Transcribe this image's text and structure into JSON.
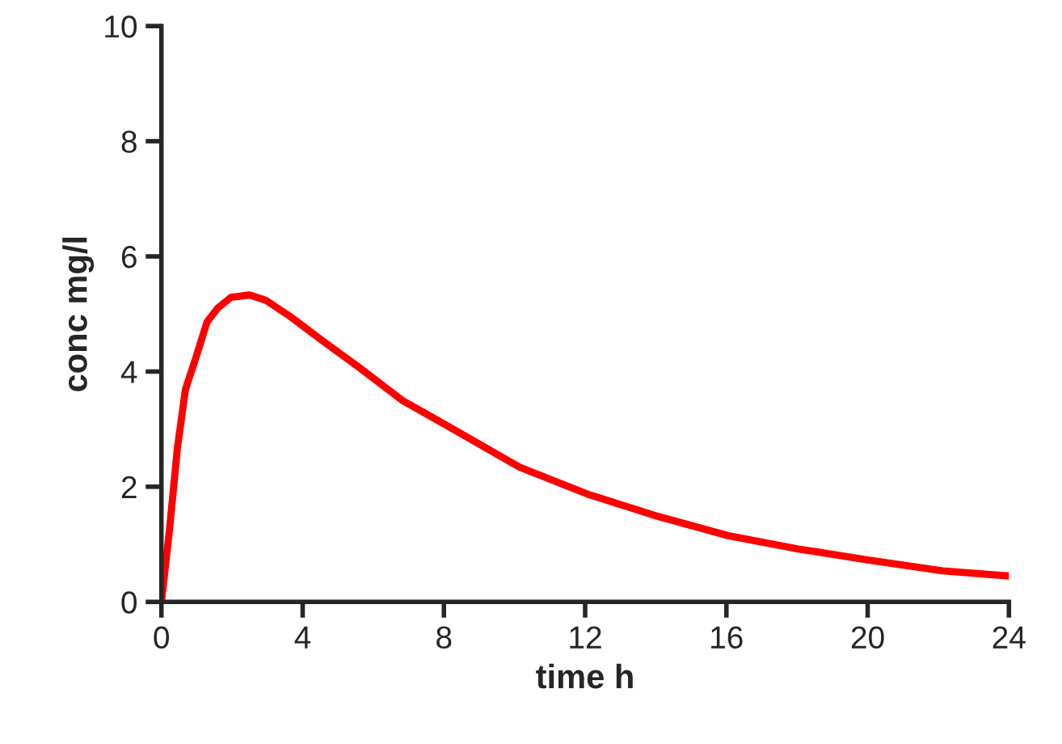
{
  "chart_data": {
    "type": "line",
    "xlabel": "time h",
    "ylabel": "conc mg/l",
    "series": [
      {
        "color": "#ff0000",
        "x": [
          0,
          0.23,
          0.45,
          0.68,
          0.98,
          1.29,
          1.59,
          1.97,
          2.5,
          2.95,
          3.64,
          4.55,
          5.6,
          6.82,
          8.03,
          10.14,
          12.12,
          14.09,
          16.05,
          18.03,
          20,
          22.12,
          24
        ],
        "values": [
          0,
          1.26,
          2.66,
          3.69,
          4.25,
          4.86,
          5.1,
          5.29,
          5.33,
          5.24,
          4.96,
          4.54,
          4.07,
          3.5,
          3.08,
          2.34,
          1.86,
          1.48,
          1.15,
          0.92,
          0.73,
          0.54,
          0.45
        ]
      }
    ],
    "xlim": [
      0,
      24
    ],
    "xticks": [
      0,
      4,
      8,
      12,
      16,
      20,
      24
    ],
    "ylim": [
      0,
      10
    ],
    "yticks": [
      0,
      2,
      4,
      6,
      8,
      10
    ],
    "grid": false,
    "legend": false,
    "marker": "none",
    "line_style": "solid"
  }
}
